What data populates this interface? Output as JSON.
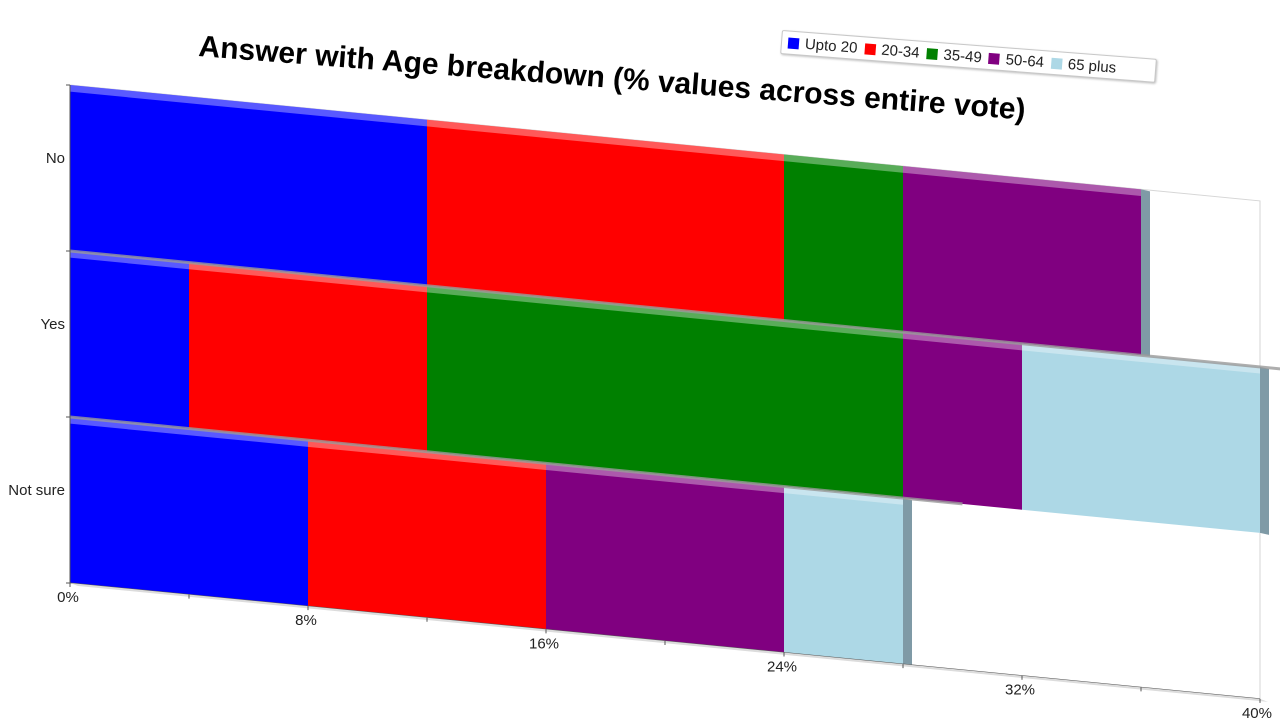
{
  "chart_data": {
    "type": "bar",
    "orientation": "horizontal",
    "stacked": true,
    "title": "Answer with Age breakdown (% values across entire vote)",
    "categories": [
      "No",
      "Yes",
      "Not sure"
    ],
    "series": [
      {
        "name": "Upto 20",
        "color": "#0000ff",
        "values": [
          12,
          4,
          8
        ]
      },
      {
        "name": "20-34",
        "color": "#ff0000",
        "values": [
          12,
          8,
          8
        ]
      },
      {
        "name": "35-49",
        "color": "#008000",
        "values": [
          4,
          16,
          0
        ]
      },
      {
        "name": "50-64",
        "color": "#800080",
        "values": [
          8,
          4,
          8
        ]
      },
      {
        "name": "65 plus",
        "color": "#add8e6",
        "values": [
          0,
          8,
          4
        ]
      }
    ],
    "x_ticks": [
      "0%",
      "8%",
      "16%",
      "24%",
      "32%",
      "40%"
    ],
    "xlim": [
      0,
      40
    ],
    "legend_position": "top-right",
    "grid": false
  }
}
